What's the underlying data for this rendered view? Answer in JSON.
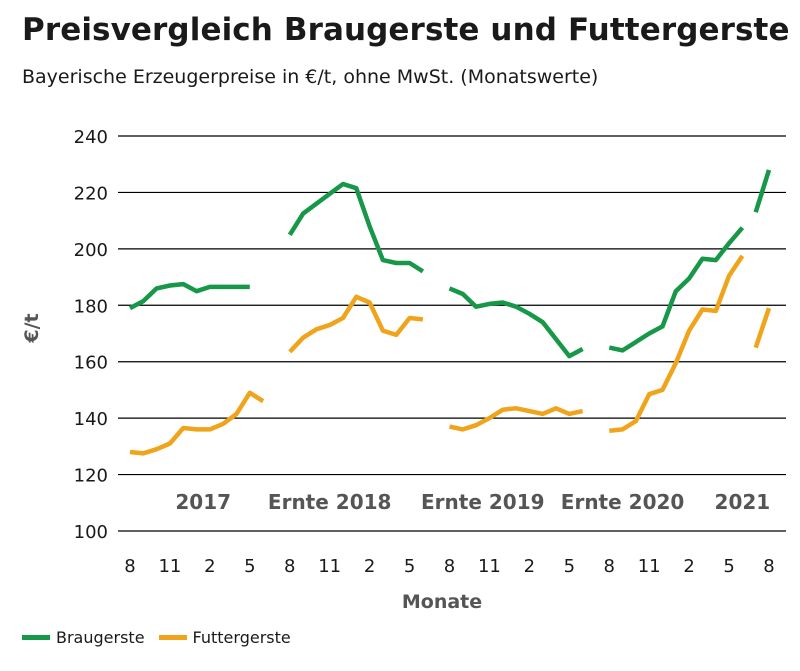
{
  "colors": {
    "braugerste": "#169848",
    "futtergerste": "#f0a41c",
    "axis": "#000000",
    "grid": "#000000",
    "label": "#555555"
  },
  "chart_data": {
    "type": "line",
    "title": "Preisvergleich Braugerste und Futtergerste",
    "subtitle": "Bayerische Erzeugerpreise in €/t, ohne MwSt. (Monatswerte)",
    "xlabel": "Monate",
    "ylabel": "€/t",
    "ylim": [
      100,
      240
    ],
    "yticks": [
      100,
      120,
      140,
      160,
      180,
      200,
      220,
      240
    ],
    "x_index_range": [
      0,
      48
    ],
    "xtick_positions": [
      0,
      3,
      6,
      9,
      12,
      15,
      18,
      21,
      24,
      27,
      30,
      33,
      36,
      39,
      42,
      45,
      48
    ],
    "xtick_labels": [
      "8",
      "11",
      "2",
      "5",
      "8",
      "11",
      "2",
      "5",
      "8",
      "11",
      "2",
      "5",
      "8",
      "11",
      "2",
      "5",
      "8"
    ],
    "period_labels": [
      {
        "text": "2017",
        "x": 5.5
      },
      {
        "text": "Ernte 2018",
        "x": 15
      },
      {
        "text": "Ernte 2019",
        "x": 26.5
      },
      {
        "text": "Ernte 2020",
        "x": 37
      },
      {
        "text": "2021",
        "x": 46
      }
    ],
    "grid": "horizontal",
    "legend_position": "bottom-left",
    "series": [
      {
        "name": "Braugerste",
        "segments": [
          [
            [
              0,
              179
            ],
            [
              1,
              181.5
            ],
            [
              2,
              186
            ],
            [
              3,
              187
            ],
            [
              4,
              187.5
            ],
            [
              5,
              185
            ],
            [
              6,
              186.5
            ],
            [
              7,
              186.5
            ],
            [
              8,
              186.5
            ],
            [
              9,
              186.5
            ]
          ],
          [
            [
              12,
              205
            ],
            [
              13,
              212.5
            ],
            [
              14,
              216
            ],
            [
              15,
              219.5
            ],
            [
              16,
              223
            ],
            [
              17,
              221.5
            ],
            [
              18,
              208
            ],
            [
              19,
              196
            ],
            [
              20,
              195
            ],
            [
              21,
              195
            ],
            [
              22,
              192
            ]
          ],
          [
            [
              24,
              186
            ],
            [
              25,
              184
            ],
            [
              26,
              179.5
            ],
            [
              27,
              180.5
            ],
            [
              28,
              181
            ],
            [
              29,
              179.5
            ],
            [
              30,
              177
            ],
            [
              31,
              174
            ],
            [
              32,
              168
            ],
            [
              33,
              162
            ],
            [
              34,
              164.5
            ]
          ],
          [
            [
              36,
              165
            ],
            [
              37,
              164
            ],
            [
              38,
              167
            ],
            [
              39,
              170
            ],
            [
              40,
              172.5
            ],
            [
              41,
              185
            ],
            [
              42,
              189.5
            ],
            [
              43,
              196.5
            ],
            [
              44,
              196
            ],
            [
              45,
              202
            ],
            [
              46,
              207.5
            ]
          ],
          [
            [
              47,
              213
            ],
            [
              48,
              228
            ]
          ]
        ]
      },
      {
        "name": "Futtergerste",
        "segments": [
          [
            [
              0,
              128
            ],
            [
              1,
              127.5
            ],
            [
              2,
              129
            ],
            [
              3,
              131
            ],
            [
              4,
              136.5
            ],
            [
              5,
              136
            ],
            [
              6,
              136
            ],
            [
              7,
              138
            ],
            [
              8,
              141.5
            ],
            [
              9,
              149
            ],
            [
              10,
              146
            ]
          ],
          [
            [
              12,
              163.5
            ],
            [
              13,
              168.5
            ],
            [
              14,
              171.5
            ],
            [
              15,
              173
            ],
            [
              16,
              175.5
            ],
            [
              17,
              183
            ],
            [
              18,
              181
            ],
            [
              19,
              171
            ],
            [
              20,
              169.5
            ],
            [
              21,
              175.5
            ],
            [
              22,
              175
            ]
          ],
          [
            [
              24,
              137
            ],
            [
              25,
              136
            ],
            [
              26,
              137.5
            ],
            [
              27,
              140
            ],
            [
              28,
              143
            ],
            [
              29,
              143.5
            ],
            [
              30,
              142.5
            ],
            [
              31,
              141.5
            ],
            [
              32,
              143.5
            ],
            [
              33,
              141.5
            ],
            [
              34,
              142.5
            ]
          ],
          [
            [
              36,
              135.5
            ],
            [
              37,
              136
            ],
            [
              38,
              139
            ],
            [
              39,
              148.5
            ],
            [
              40,
              150
            ],
            [
              41,
              159.5
            ],
            [
              42,
              171
            ],
            [
              43,
              178.5
            ],
            [
              44,
              178
            ],
            [
              45,
              190.5
            ],
            [
              46,
              197.5
            ]
          ],
          [
            [
              47,
              165
            ],
            [
              48,
              179
            ]
          ]
        ]
      }
    ]
  },
  "legend": {
    "items": [
      "Braugerste",
      "Futtergerste"
    ]
  }
}
